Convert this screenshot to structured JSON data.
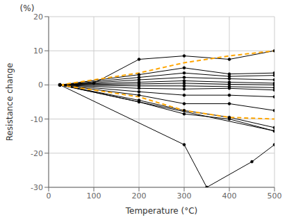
{
  "chart_data": {
    "type": "line",
    "x_label": "Temperature      (°C)",
    "y_label": "Resistance change",
    "y_label_unit": "(%)",
    "xlim": [
      0,
      500
    ],
    "ylim": [
      -30,
      20
    ],
    "xticks": [
      0,
      100,
      200,
      300,
      400,
      500
    ],
    "yticks": [
      -30,
      -20,
      -10,
      0,
      10,
      20
    ],
    "grid": true,
    "series": [
      {
        "x": [
          25,
          200,
          300,
          400,
          500
        ],
        "values": [
          0,
          3.0,
          5.0,
          3.2,
          3.5
        ],
        "color": "black",
        "marker": "o",
        "line_style": "solid"
      },
      {
        "x": [
          25,
          200,
          300,
          400,
          500
        ],
        "values": [
          0,
          2.2,
          3.5,
          2.5,
          2.8
        ],
        "color": "black",
        "marker": "o",
        "line_style": "solid"
      },
      {
        "x": [
          25,
          200,
          300,
          400,
          500
        ],
        "values": [
          0,
          1.5,
          2.2,
          1.8,
          1.5
        ],
        "color": "black",
        "marker": "o",
        "line_style": "solid"
      },
      {
        "x": [
          25,
          200,
          300,
          400,
          500
        ],
        "values": [
          0,
          0.8,
          1.2,
          0.8,
          0.5
        ],
        "color": "black",
        "marker": "o",
        "line_style": "solid"
      },
      {
        "x": [
          25,
          200,
          300,
          400,
          500
        ],
        "values": [
          0,
          0.3,
          0.5,
          0.2,
          0.0
        ],
        "color": "black",
        "marker": "o",
        "line_style": "solid"
      },
      {
        "x": [
          25,
          200,
          300,
          400,
          500
        ],
        "values": [
          0,
          -0.3,
          -0.3,
          -0.5,
          -0.8
        ],
        "color": "black",
        "marker": "o",
        "line_style": "solid"
      },
      {
        "x": [
          25,
          200,
          300,
          400,
          500
        ],
        "values": [
          0,
          -1.0,
          -1.2,
          -1.0,
          -1.5
        ],
        "color": "black",
        "marker": "o",
        "line_style": "solid"
      },
      {
        "x": [
          25,
          200,
          300,
          400,
          500
        ],
        "values": [
          0,
          -2.0,
          -3.0,
          -3.0,
          -3.5
        ],
        "color": "black",
        "marker": "o",
        "line_style": "solid"
      },
      {
        "x": [
          25,
          200,
          300,
          400,
          500
        ],
        "values": [
          0,
          -3.0,
          -5.5,
          -5.5,
          -7.5
        ],
        "color": "black",
        "marker": "o",
        "line_style": "solid"
      },
      {
        "x": [
          25,
          200,
          300,
          400,
          500
        ],
        "values": [
          0,
          -4.5,
          -7.5,
          -9.5,
          -12.5
        ],
        "color": "black",
        "marker": "o",
        "line_style": "solid"
      },
      {
        "x": [
          25,
          200,
          300,
          400,
          500
        ],
        "values": [
          0,
          -5.0,
          -8.5,
          -10.0,
          -13.5
        ],
        "color": "black",
        "marker": "o",
        "line_style": "solid"
      },
      {
        "x": [
          25,
          100,
          200,
          300,
          400,
          500
        ],
        "values": [
          0,
          0.5,
          7.5,
          8.5,
          7.5,
          10.0
        ],
        "color": "black",
        "marker": "o",
        "line_style": "solid"
      },
      {
        "x": [
          25,
          300,
          350,
          450,
          500
        ],
        "values": [
          0,
          -17.5,
          -30.0,
          -22.5,
          -17.5
        ],
        "color": "black",
        "marker": "o",
        "line_style": "solid"
      },
      {
        "x": [
          25,
          500
        ],
        "values": [
          0,
          -13.5
        ],
        "color": "black",
        "marker": "o",
        "line_style": "solid"
      },
      {
        "x": [
          25,
          200,
          300,
          400,
          500
        ],
        "values": [
          0,
          3.5,
          6.5,
          8.5,
          10.0
        ],
        "color": "#FFA500",
        "marker": "none",
        "line_style": "dashed"
      },
      {
        "x": [
          25,
          200,
          300,
          400,
          500
        ],
        "values": [
          0,
          -3.5,
          -7.5,
          -9.5,
          -10.0
        ],
        "color": "#FFA500",
        "marker": "none",
        "line_style": "dashed"
      }
    ]
  }
}
